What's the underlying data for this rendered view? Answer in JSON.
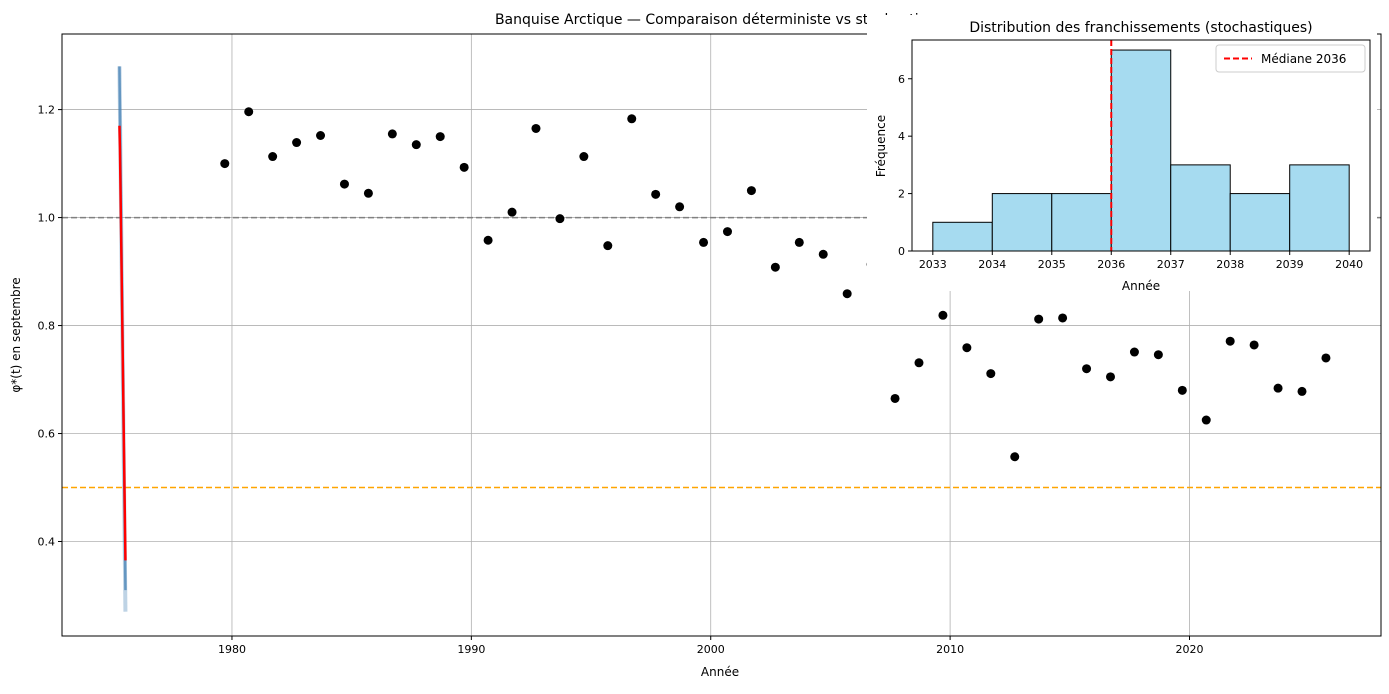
{
  "chart_data": [
    {
      "type": "scatter",
      "title": "Banquise Arctique — Comparaison déterministe vs stochastique",
      "xlabel": "Année",
      "ylabel": "φ*(t) en septembre",
      "xlim": [
        1972.9,
        2028.0
      ],
      "ylim": [
        0.225,
        1.34
      ],
      "grid": true,
      "x_ticks": [
        1980,
        1990,
        2000,
        2010,
        2020
      ],
      "y_ticks": [
        0.4,
        0.6,
        0.8,
        1.0,
        1.2
      ],
      "y_tick_labels": [
        "0.4",
        "0.6",
        "0.8",
        "1.0",
        "1.2"
      ],
      "reference_lines": [
        {
          "y": 1.0,
          "color": "#808080",
          "style": "dashed"
        },
        {
          "y": 0.5,
          "color": "#ffa500",
          "style": "dashed"
        }
      ],
      "observations": {
        "color": "#000000",
        "x": [
          1979.7,
          1980.7,
          1981.7,
          1982.7,
          1983.7,
          1984.7,
          1985.7,
          1986.7,
          1987.7,
          1988.7,
          1989.7,
          1990.7,
          1991.7,
          1992.7,
          1993.7,
          1994.7,
          1995.7,
          1996.7,
          1997.7,
          1998.7,
          1999.7,
          2000.7,
          2001.7,
          2002.7,
          2003.7,
          2004.7,
          2005.7,
          2006.7,
          2007.7,
          2008.7,
          2009.7,
          2010.7,
          2011.7,
          2012.7,
          2013.7,
          2014.7,
          2015.7,
          2016.7,
          2017.7,
          2018.7,
          2019.7,
          2020.7,
          2021.7,
          2022.7,
          2023.7,
          2024.7,
          2025.7
        ],
        "y": [
          1.1,
          1.196,
          1.113,
          1.139,
          1.152,
          1.062,
          1.045,
          1.155,
          1.135,
          1.15,
          1.093,
          0.958,
          1.01,
          1.165,
          0.998,
          1.113,
          0.948,
          1.183,
          1.043,
          1.02,
          0.954,
          0.974,
          1.05,
          0.908,
          0.954,
          0.932,
          0.859,
          0.913,
          0.665,
          0.731,
          0.819,
          0.759,
          0.711,
          0.557,
          0.812,
          0.814,
          0.72,
          0.705,
          0.751,
          0.746,
          0.68,
          0.625,
          0.771,
          0.764,
          0.684,
          0.678,
          0.74
        ]
      },
      "stochastic_band": {
        "color": "#4682b4",
        "x": [
          1975.3,
          1975.55
        ],
        "y_top": [
          1.28,
          0.31
        ],
        "y_faint": [
          1.28,
          0.27
        ]
      },
      "deterministic_curve": {
        "color": "#ff0000",
        "x": [
          1975.3,
          1975.32,
          1975.36,
          1975.55
        ],
        "y": [
          1.17,
          1.13,
          1.0,
          0.365
        ]
      }
    },
    {
      "type": "bar",
      "title": "Distribution des franchissements (stochastiques)",
      "xlabel": "Année",
      "ylabel": "Fréquence",
      "xlim": [
        2032.65,
        2040.35
      ],
      "ylim": [
        0,
        7.35
      ],
      "x_ticks": [
        2033,
        2034,
        2035,
        2036,
        2037,
        2038,
        2039,
        2040
      ],
      "y_ticks": [
        0,
        2,
        4,
        6
      ],
      "bin_edges": [
        2033,
        2034,
        2035,
        2036,
        2037,
        2038,
        2039,
        2040
      ],
      "values": [
        1,
        2,
        2,
        7,
        3,
        2,
        3
      ],
      "bar_color": "#a6dbf0",
      "median_line": {
        "x": 2036,
        "color": "#ff0000",
        "label": "Médiane 2036"
      },
      "legend_position": "top-right"
    }
  ]
}
